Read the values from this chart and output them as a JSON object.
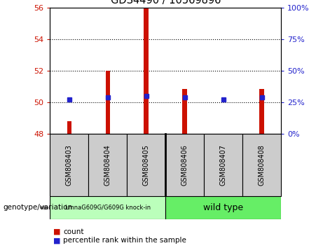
{
  "title": "GDS4490 / 10569896",
  "samples": [
    "GSM808403",
    "GSM808404",
    "GSM808405",
    "GSM808406",
    "GSM808407",
    "GSM808408"
  ],
  "red_values": [
    48.8,
    52.0,
    56.0,
    50.85,
    47.92,
    50.85
  ],
  "blue_percentiles": [
    27,
    29,
    30,
    29,
    27,
    29
  ],
  "ymin": 48,
  "ymax": 56,
  "yticks": [
    48,
    50,
    52,
    54,
    56
  ],
  "right_yticks": [
    0,
    25,
    50,
    75,
    100
  ],
  "bar_color": "#cc1100",
  "dot_color": "#2222cc",
  "group1_label": "LmnaG609G/G609G knock-in",
  "group2_label": "wild type",
  "group1_indices": [
    0,
    1,
    2
  ],
  "group2_indices": [
    3,
    4,
    5
  ],
  "group1_color": "#bbffbb",
  "group2_color": "#66ee66",
  "xlabel_left": "genotype/variation",
  "legend_count": "count",
  "legend_pct": "percentile rank within the sample",
  "bar_width": 0.12,
  "tick_label_color_left": "#cc1100",
  "tick_label_color_right": "#2222cc",
  "label_box_color": "#cccccc",
  "grid_dotted_ticks": [
    50,
    52,
    54
  ]
}
